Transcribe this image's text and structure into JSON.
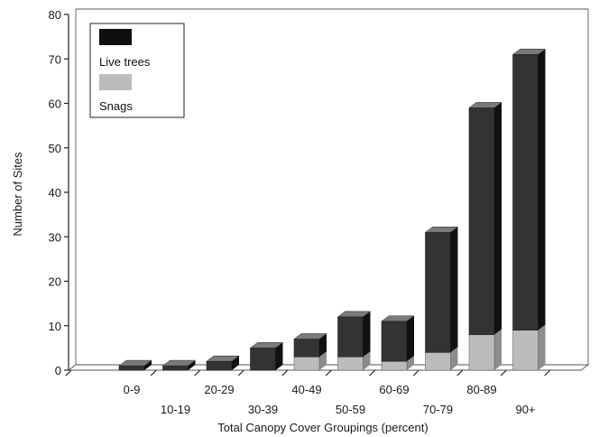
{
  "chart_data": {
    "type": "bar",
    "stacked": true,
    "three_d": true,
    "xlabel": "Total Canopy Cover Groupings (percent)",
    "ylabel": "Number of Sites",
    "ylim": [
      0,
      80
    ],
    "yticks": [
      0,
      10,
      20,
      30,
      40,
      50,
      60,
      70,
      80
    ],
    "categories": [
      "0-9",
      "10-19",
      "20-29",
      "30-39",
      "40-49",
      "50-59",
      "60-69",
      "70-79",
      "80-89",
      "90+"
    ],
    "series": [
      {
        "name": "Live trees",
        "values": [
          1,
          1,
          2,
          5,
          4,
          9,
          9,
          27,
          51,
          62
        ],
        "color": "#333333"
      },
      {
        "name": "Snags",
        "values": [
          0,
          0,
          0,
          0,
          3,
          3,
          2,
          4,
          8,
          9
        ],
        "color": "#bcbcbc"
      }
    ],
    "totals": [
      1,
      1,
      2,
      5,
      7,
      12,
      11,
      31,
      59,
      71
    ],
    "legend_position": "top-left",
    "grid": false
  }
}
